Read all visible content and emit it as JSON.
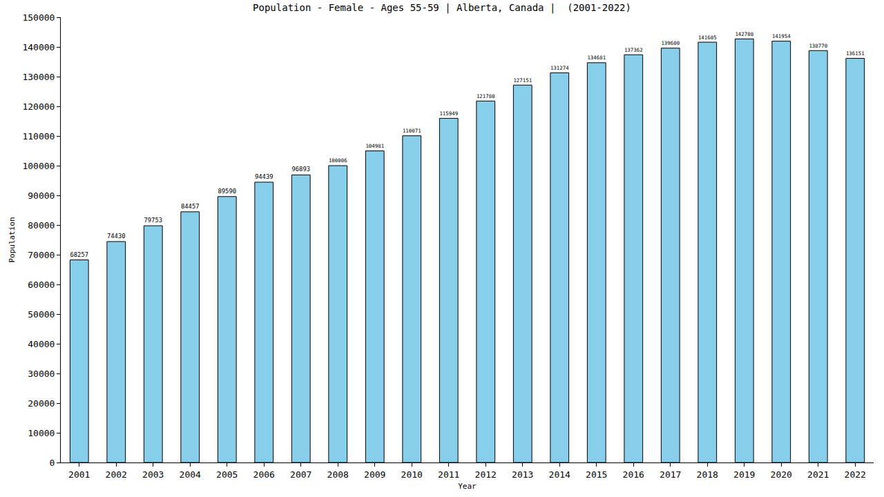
{
  "chart_data": {
    "type": "bar",
    "title": "Population - Female - Ages 55-59 | Alberta, Canada |  (2001-2022)",
    "x_label": "Year",
    "y_label": "Population",
    "categories": [
      "2001",
      "2002",
      "2003",
      "2004",
      "2005",
      "2006",
      "2007",
      "2008",
      "2009",
      "2010",
      "2011",
      "2012",
      "2013",
      "2014",
      "2015",
      "2016",
      "2017",
      "2018",
      "2019",
      "2020",
      "2021",
      "2022"
    ],
    "values": [
      68257,
      74430,
      79753,
      84457,
      89590,
      94439,
      96893,
      100006,
      104981,
      110071,
      115949,
      121780,
      127151,
      131274,
      134681,
      137362,
      139600,
      141605,
      142708,
      141954,
      138770,
      136151
    ],
    "color": "#87ceeb",
    "ylim": [
      0,
      150000
    ],
    "yticks": [
      0,
      10000,
      20000,
      30000,
      40000,
      50000,
      60000,
      70000,
      80000,
      90000,
      100000,
      110000,
      120000,
      130000,
      140000,
      150000
    ],
    "grid": false,
    "data_labels": true
  }
}
